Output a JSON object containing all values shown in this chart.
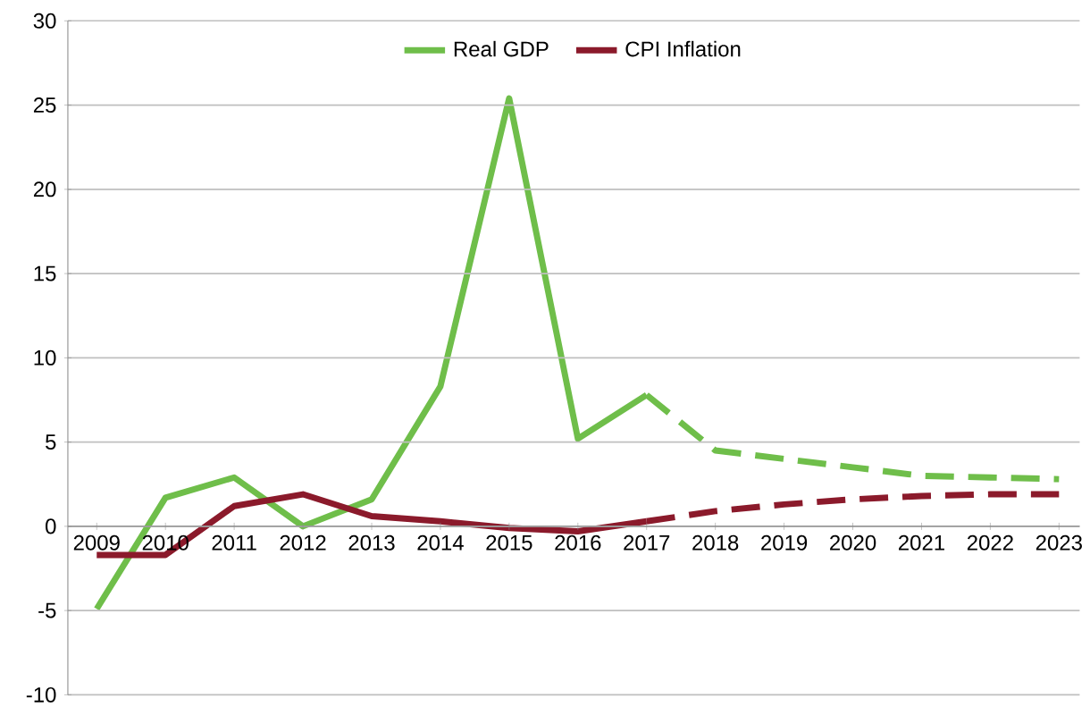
{
  "chart_data": {
    "type": "line",
    "categories": [
      "2009",
      "2010",
      "2011",
      "2012",
      "2013",
      "2014",
      "2015",
      "2016",
      "2017",
      "2018",
      "2019",
      "2020",
      "2021",
      "2022",
      "2023"
    ],
    "series": [
      {
        "name": "Real GDP",
        "color": "#6fbe4a",
        "line_style": "solid",
        "values": [
          -4.9,
          1.7,
          2.9,
          0,
          1.6,
          8.3,
          25.4,
          5.2,
          7.8,
          null,
          null,
          null,
          null,
          null,
          null
        ]
      },
      {
        "name": "CPI Inflation",
        "color": "#8b1a2b",
        "line_style": "solid",
        "values": [
          -1.7,
          -1.7,
          1.2,
          1.9,
          0.6,
          0.3,
          -0.1,
          -0.3,
          0.3,
          null,
          null,
          null,
          null,
          null,
          null
        ]
      },
      {
        "color": "#6fbe4a",
        "line_style": "dashed",
        "values": [
          null,
          null,
          null,
          null,
          null,
          null,
          null,
          null,
          7.8,
          4.5,
          4.0,
          3.5,
          3.0,
          2.9,
          2.8
        ]
      },
      {
        "color": "#8b1a2b",
        "line_style": "dashed",
        "values": [
          null,
          null,
          null,
          null,
          null,
          null,
          null,
          null,
          0.3,
          0.9,
          1.3,
          1.6,
          1.8,
          1.9,
          1.9
        ]
      }
    ],
    "ylim": [
      -10,
      30
    ],
    "yticks": [
      -10,
      -5,
      0,
      5,
      10,
      15,
      20,
      25,
      30
    ],
    "grid": "y",
    "legend": "top",
    "marker": "none"
  }
}
